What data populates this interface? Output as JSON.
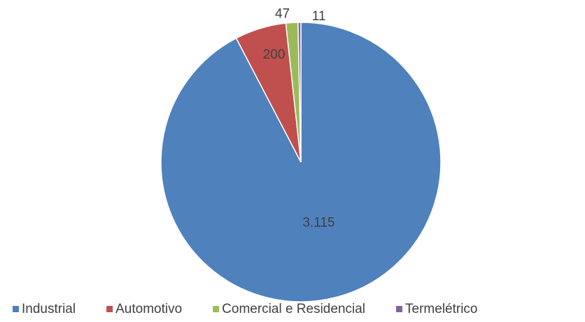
{
  "chart_data": {
    "type": "pie",
    "categories": [
      "Industrial",
      "Automotivo",
      "Comercial e Residencial",
      "Termelétrico"
    ],
    "values": [
      3115,
      200,
      47,
      11
    ],
    "value_labels": [
      "3.115",
      "200",
      "47",
      "11"
    ],
    "colors": [
      "#4f81bd",
      "#c0504d",
      "#9bbb59",
      "#8064a2"
    ],
    "legend": "bottom"
  }
}
